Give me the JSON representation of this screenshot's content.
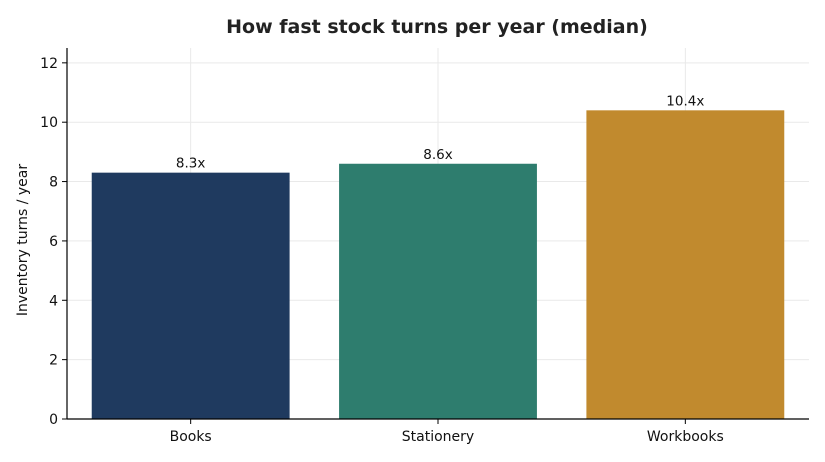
{
  "chart_data": {
    "type": "bar",
    "title": "How fast stock turns per year (median)",
    "xlabel": "",
    "ylabel": "Inventory turns / year",
    "categories": [
      "Books",
      "Stationery",
      "Workbooks"
    ],
    "values": [
      8.3,
      8.6,
      10.4
    ],
    "data_labels": [
      "8.3x",
      "8.6x",
      "10.4x"
    ],
    "colors": [
      "#1f3a5f",
      "#2e7d6e",
      "#c18a2e"
    ],
    "ylim": [
      0,
      12.5
    ],
    "yticks": [
      0,
      2,
      4,
      6,
      8,
      10,
      12
    ],
    "ytick_labels": [
      "0",
      "2",
      "4",
      "6",
      "8",
      "10",
      "12"
    ],
    "grid": true,
    "legend": "none"
  }
}
